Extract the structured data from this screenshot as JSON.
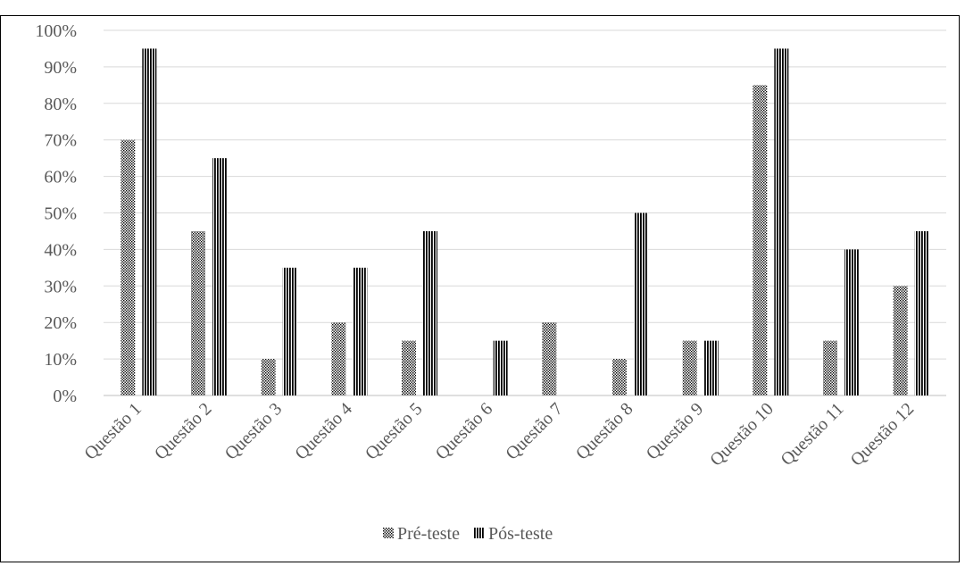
{
  "caption": "",
  "chart_data": {
    "type": "bar",
    "categories": [
      "Questão 1",
      "Questão 2",
      "Questão 3",
      "Questão 4",
      "Questão 5",
      "Questão 6",
      "Questão 7",
      "Questão 8",
      "Questão 9",
      "Questão 10",
      "Questão 11",
      "Questão 12"
    ],
    "series": [
      {
        "name": "Pré-teste",
        "values": [
          70,
          45,
          10,
          20,
          15,
          0,
          20,
          10,
          15,
          85,
          15,
          30
        ],
        "pattern": "dotted"
      },
      {
        "name": "Pós-teste",
        "values": [
          95,
          65,
          35,
          35,
          45,
          15,
          0,
          50,
          15,
          95,
          40,
          45
        ],
        "pattern": "vertical-stripes"
      }
    ],
    "y_ticks": [
      "0%",
      "10%",
      "20%",
      "30%",
      "40%",
      "50%",
      "60%",
      "70%",
      "80%",
      "90%",
      "100%"
    ],
    "ylim": [
      0,
      100
    ],
    "grid": true,
    "legend_position": "bottom",
    "title": "",
    "xlabel": "",
    "ylabel": ""
  }
}
